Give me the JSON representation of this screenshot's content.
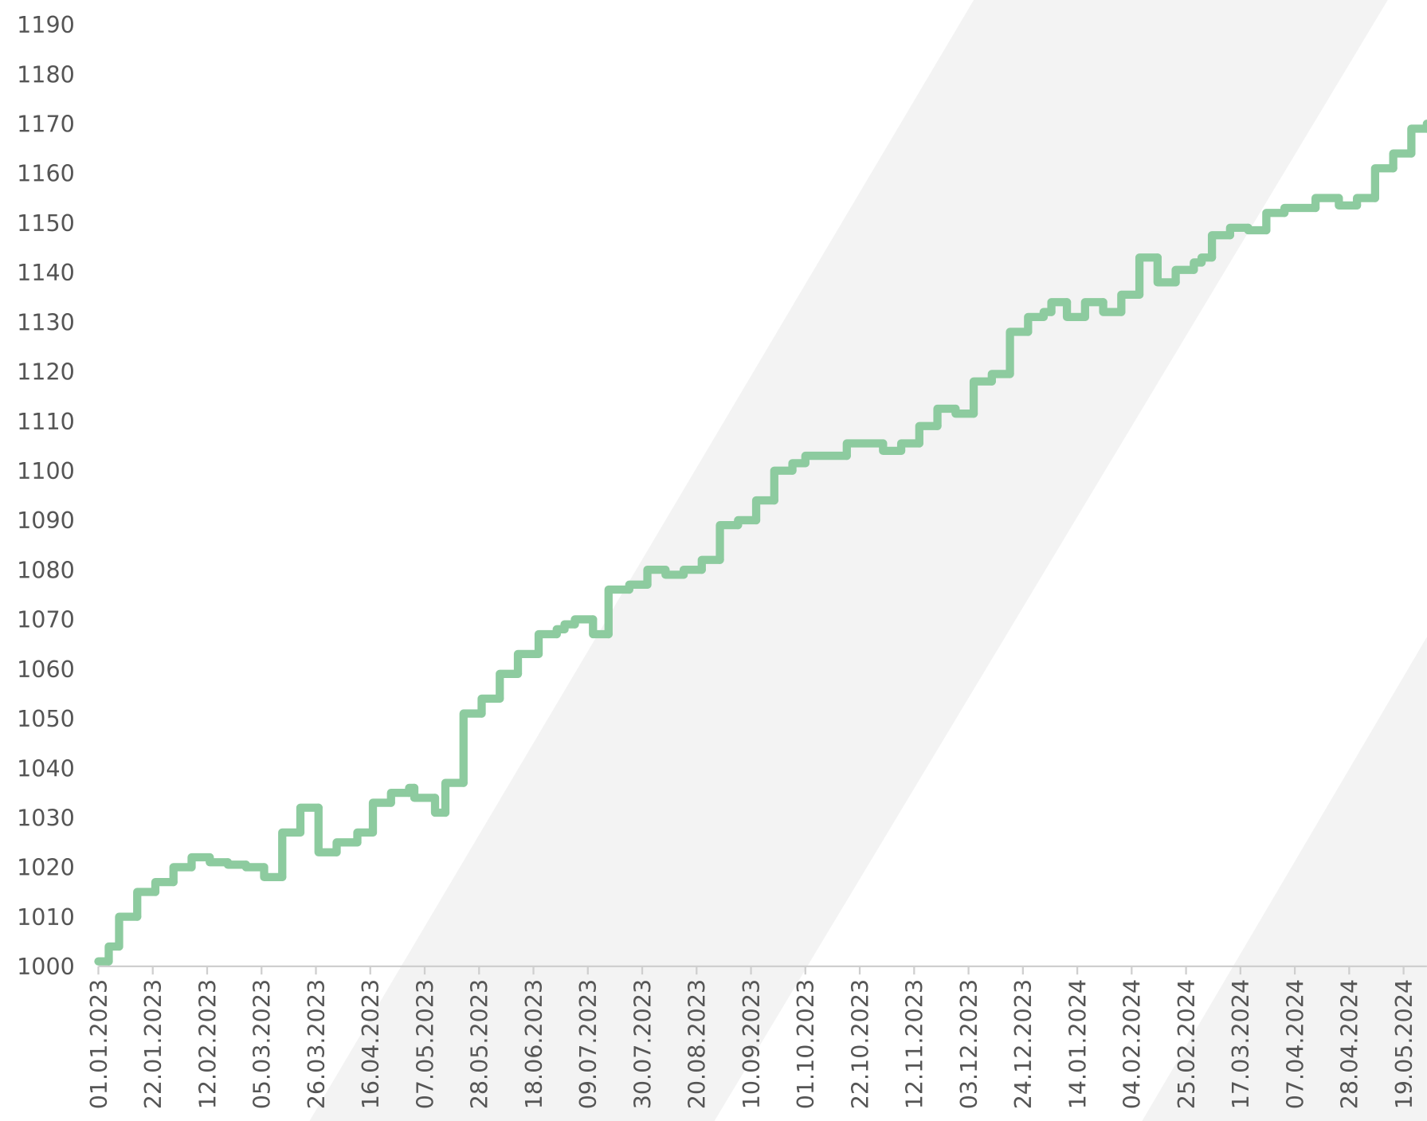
{
  "chart_data": {
    "type": "step",
    "series": [
      {
        "color": "#8dcb9f",
        "x": [
          "01.01.2023",
          "05.01.2023",
          "09.01.2023",
          "16.01.2023",
          "23.01.2023",
          "30.01.2023",
          "06.02.2023",
          "13.02.2023",
          "20.02.2023",
          "27.02.2023",
          "06.03.2023",
          "13.03.2023",
          "20.03.2023",
          "27.03.2023",
          "03.04.2023",
          "11.04.2023",
          "17.04.2023",
          "24.04.2023",
          "01.05.2023",
          "03.05.2023",
          "11.05.2023",
          "15.05.2023",
          "22.05.2023",
          "29.05.2023",
          "05.06.2023",
          "12.06.2023",
          "20.06.2023",
          "27.06.2023",
          "30.06.2023",
          "04.07.2023",
          "11.07.2023",
          "17.07.2023",
          "25.07.2023",
          "01.08.2023",
          "08.08.2023",
          "15.08.2023",
          "22.08.2023",
          "29.08.2023",
          "05.09.2023",
          "12.09.2023",
          "19.09.2023",
          "26.09.2023",
          "01.10.2023",
          "17.10.2023",
          "31.10.2023",
          "07.11.2023",
          "14.11.2023",
          "21.11.2023",
          "28.11.2023",
          "05.12.2023",
          "12.12.2023",
          "19.12.2023",
          "26.12.2023",
          "01.01.2024",
          "04.01.2024",
          "10.01.2024",
          "17.01.2024",
          "24.01.2024",
          "31.01.2024",
          "07.02.2024",
          "14.02.2024",
          "21.02.2024",
          "28.02.2024",
          "02.03.2024",
          "06.03.2024",
          "13.03.2024",
          "20.03.2024",
          "27.03.2024",
          "03.04.2024",
          "15.04.2024",
          "24.04.2024",
          "01.05.2024",
          "08.05.2024",
          "15.05.2024",
          "22.05.2024",
          "28.05.2024"
        ],
        "values": [
          1001,
          1004,
          1010,
          1015,
          1017,
          1020,
          1022,
          1021,
          1020.5,
          1020,
          1018,
          1027,
          1032,
          1023,
          1025,
          1027,
          1033,
          1035,
          1036,
          1034,
          1031,
          1037,
          1051,
          1054,
          1059,
          1063,
          1067,
          1068,
          1069,
          1070,
          1067,
          1076,
          1077,
          1080,
          1079,
          1080,
          1082,
          1089,
          1090,
          1094,
          1100,
          1101.5,
          1103,
          1105.5,
          1104,
          1105.5,
          1109,
          1112.5,
          1111.5,
          1118,
          1119.5,
          1128,
          1131,
          1132,
          1134,
          1131,
          1134,
          1132,
          1135.5,
          1143,
          1138,
          1140.5,
          1142,
          1143,
          1147.5,
          1149,
          1148.5,
          1152,
          1153,
          1155,
          1153.5,
          1155,
          1161,
          1164,
          1169,
          1170
        ]
      }
    ],
    "xlim": [
      "01.01.2023",
      "28.05.2024"
    ],
    "xticks": [
      "01.01.2023",
      "22.01.2023",
      "12.02.2023",
      "05.03.2023",
      "26.03.2023",
      "16.04.2023",
      "07.05.2023",
      "28.05.2023",
      "18.06.2023",
      "09.07.2023",
      "30.07.2023",
      "20.08.2023",
      "10.09.2023",
      "01.10.2023",
      "22.10.2023",
      "12.11.2023",
      "03.12.2023",
      "24.12.2023",
      "14.01.2024",
      "04.02.2024",
      "25.02.2024",
      "17.03.2024",
      "07.04.2024",
      "28.04.2024",
      "19.05.2024"
    ],
    "ylim": [
      1000,
      1190
    ],
    "yticks": [
      1000,
      1010,
      1020,
      1030,
      1040,
      1050,
      1060,
      1070,
      1080,
      1090,
      1100,
      1110,
      1120,
      1130,
      1140,
      1150,
      1160,
      1170,
      1180,
      1190
    ]
  }
}
